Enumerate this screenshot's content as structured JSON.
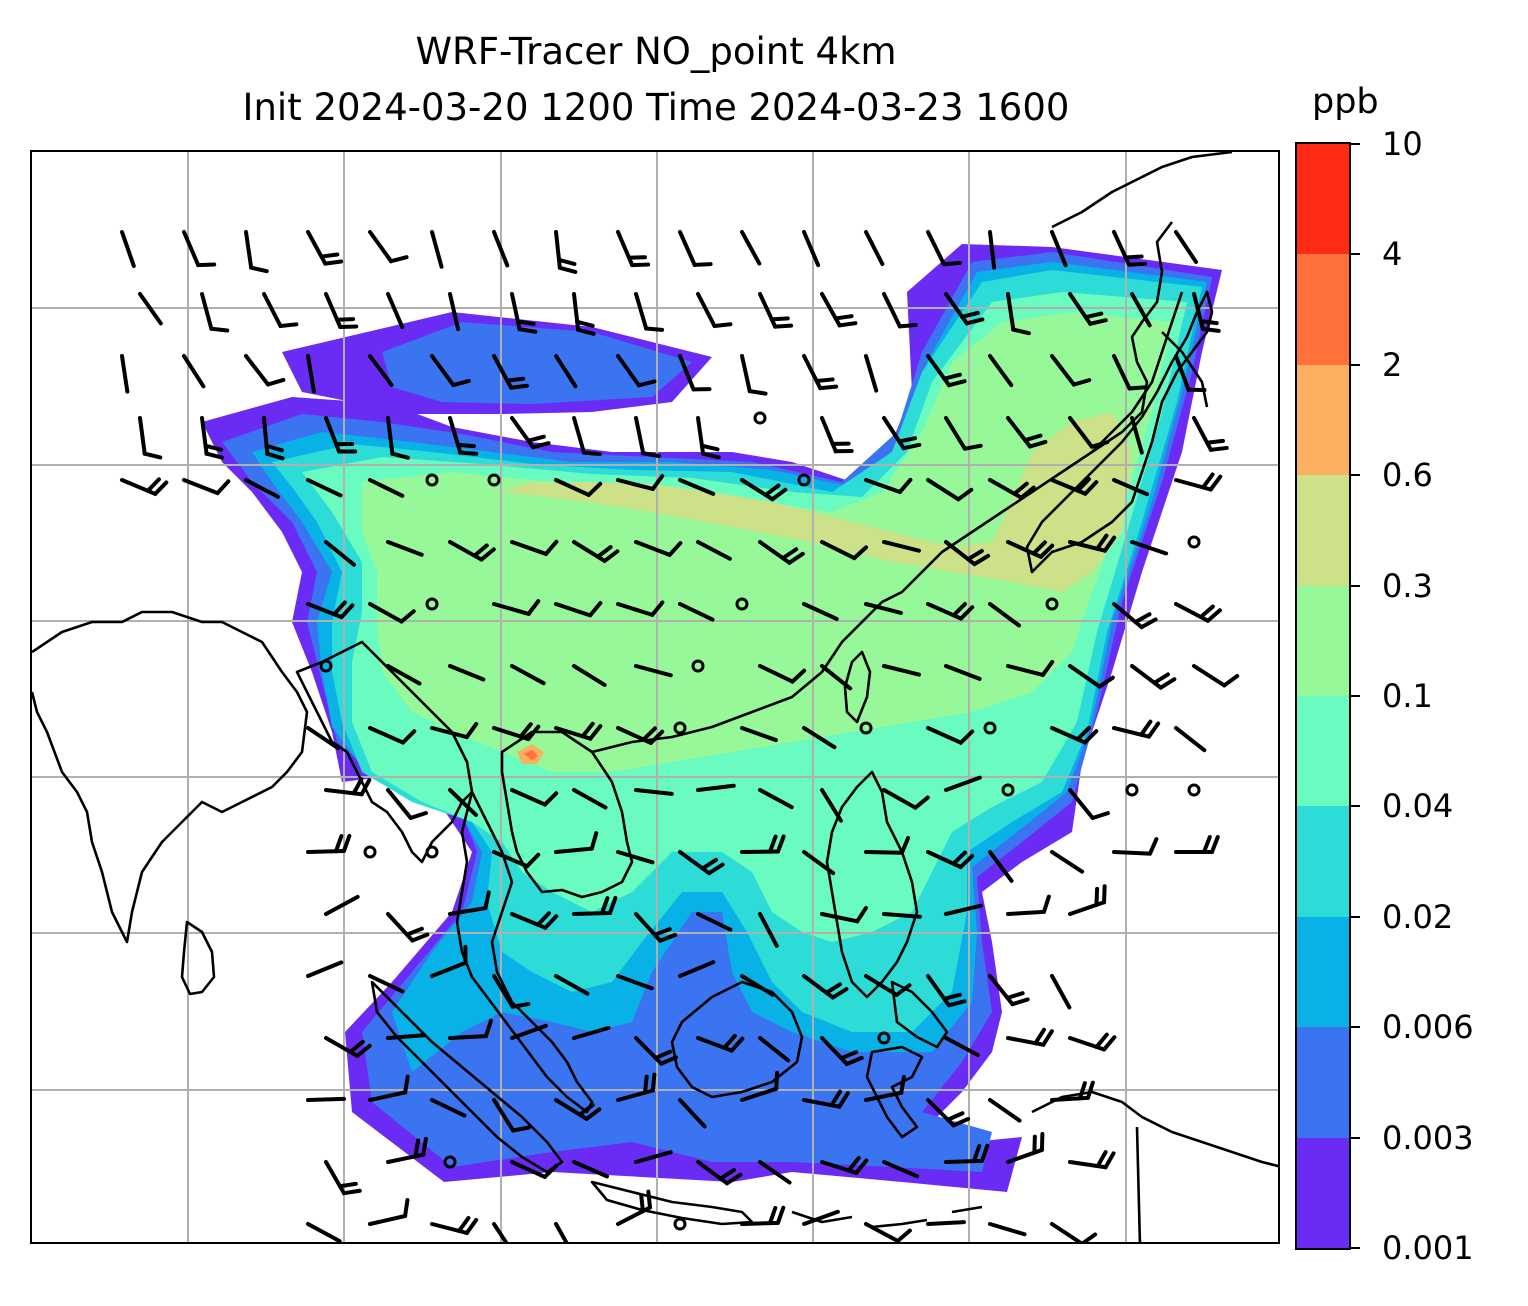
{
  "title": {
    "line1": "WRF-Tracer NO_point 4km",
    "line2": "Init 2024-03-20 1200 Time 2024-03-23 1600"
  },
  "colorbar": {
    "unit": "ppb",
    "levels": [
      "0.001",
      "0.003",
      "0.006",
      "0.02",
      "0.04",
      "0.1",
      "0.3",
      "0.6",
      "2",
      "4",
      "10"
    ],
    "colors": [
      "#6a2cf5",
      "#3a74f0",
      "#08b2e6",
      "#2ddcd6",
      "#69fbbf",
      "#97f899",
      "#cde288",
      "#fcaf5f",
      "#ff7139",
      "#ff2b17"
    ]
  },
  "map": {
    "gridlines": true,
    "gridline_color": "#b0b0b0",
    "coastline_color": "#000000",
    "wind_barbs": "black",
    "calm_markers": "circles"
  }
}
